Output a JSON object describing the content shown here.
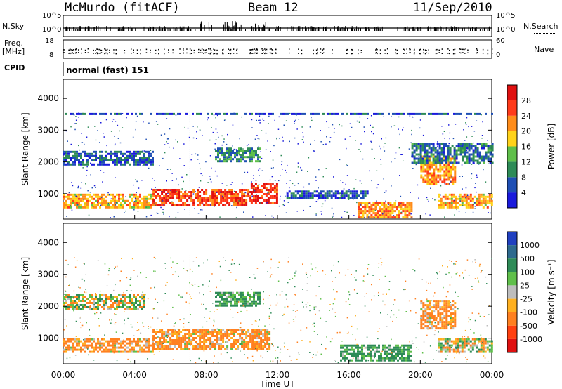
{
  "header": {
    "site": "McMurdo (fitACF)",
    "beam": "Beam 12",
    "date": "11/Sep/2010"
  },
  "strips": {
    "nsky_label": "N.Sky",
    "nsearch_label": "N.Search",
    "nsky_ticks": [
      "10^5",
      "10^0"
    ],
    "nsearch_ticks": [
      "10^5",
      "10^0"
    ],
    "freq_label_1": "Freq.",
    "freq_label_2": "[MHz]",
    "freq_ticks": [
      "18",
      "8"
    ],
    "nave_label": "Nave",
    "nave_ticks": [
      "60",
      "0"
    ],
    "cpid_label": "CPID",
    "cpid_text": "normal (fast) 151"
  },
  "chart_data": [
    {
      "type": "heatmap",
      "title": "",
      "xlabel": "",
      "ylabel": "Slant Range [km]",
      "xlim": [
        "00:00",
        "24:00"
      ],
      "ylim": [
        200,
        4600
      ],
      "y_ticks": [
        1000,
        2000,
        3000,
        4000
      ],
      "colorbar": {
        "label": "Power [dB]",
        "ticks": [
          4,
          8,
          12,
          16,
          20,
          24,
          28
        ],
        "range": [
          0,
          32
        ],
        "colors": [
          "#1a1adc",
          "#1f4fb4",
          "#2e8b57",
          "#5fbf4a",
          "#ffd21a",
          "#ff8c1a",
          "#ff3a1a",
          "#e01010"
        ]
      },
      "regions": [
        {
          "t": [
            0.0,
            5.0
          ],
          "range": [
            600,
            1000
          ],
          "value": 20
        },
        {
          "t": [
            5.0,
            10.5
          ],
          "range": [
            650,
            1150
          ],
          "value": 26
        },
        {
          "t": [
            10.5,
            12.0
          ],
          "range": [
            700,
            1350
          ],
          "value": 28
        },
        {
          "t": [
            0.0,
            5.0
          ],
          "range": [
            1900,
            2350
          ],
          "value": 6
        },
        {
          "t": [
            8.5,
            11.0
          ],
          "range": [
            2000,
            2450
          ],
          "value": 10
        },
        {
          "t": [
            12.5,
            17.0
          ],
          "range": [
            850,
            1100
          ],
          "value": 6
        },
        {
          "t": [
            16.5,
            19.5
          ],
          "range": [
            250,
            750
          ],
          "value": 22
        },
        {
          "t": [
            20.0,
            22.0
          ],
          "range": [
            1300,
            2200
          ],
          "value": 22
        },
        {
          "t": [
            21.0,
            24.0
          ],
          "range": [
            600,
            1000
          ],
          "value": 20
        },
        {
          "t": [
            19.5,
            24.0
          ],
          "range": [
            2000,
            2600
          ],
          "value": 8
        },
        {
          "t": [
            0.0,
            24.0
          ],
          "range": [
            3480,
            3540
          ],
          "value": 5
        }
      ]
    },
    {
      "type": "heatmap",
      "title": "",
      "xlabel": "Time UT",
      "ylabel": "Slant Range [km]",
      "xlim": [
        "00:00",
        "24:00"
      ],
      "ylim": [
        200,
        4600
      ],
      "x_ticks": [
        "00:00",
        "04:00",
        "08:00",
        "12:00",
        "16:00",
        "20:00",
        "00:00"
      ],
      "y_ticks": [
        1000,
        2000,
        3000,
        4000
      ],
      "colorbar": {
        "label": "Velocity [m s⁻¹]",
        "ticks": [
          "1000",
          "500",
          "100",
          "25",
          "-25",
          "-100",
          "-500",
          "-1000"
        ],
        "colors": [
          "#2040c0",
          "#2e6a8e",
          "#2e8b57",
          "#5fbf4a",
          "#bdbdbd",
          "#ffb020",
          "#ff8020",
          "#ff4010",
          "#e01010"
        ]
      },
      "regions": [
        {
          "t": [
            0.0,
            5.0
          ],
          "range": [
            600,
            1000
          ],
          "value": -100
        },
        {
          "t": [
            5.0,
            11.5
          ],
          "range": [
            650,
            1300
          ],
          "value": -100
        },
        {
          "t": [
            0.0,
            4.5
          ],
          "range": [
            1900,
            2400
          ],
          "value": 0
        },
        {
          "t": [
            8.5,
            11.0
          ],
          "range": [
            2000,
            2450
          ],
          "value": 100
        },
        {
          "t": [
            15.5,
            19.5
          ],
          "range": [
            300,
            800
          ],
          "value": 100
        },
        {
          "t": [
            20.0,
            22.0
          ],
          "range": [
            1300,
            2200
          ],
          "value": -100
        },
        {
          "t": [
            21.0,
            24.0
          ],
          "range": [
            600,
            1000
          ],
          "value": 0
        }
      ]
    }
  ]
}
